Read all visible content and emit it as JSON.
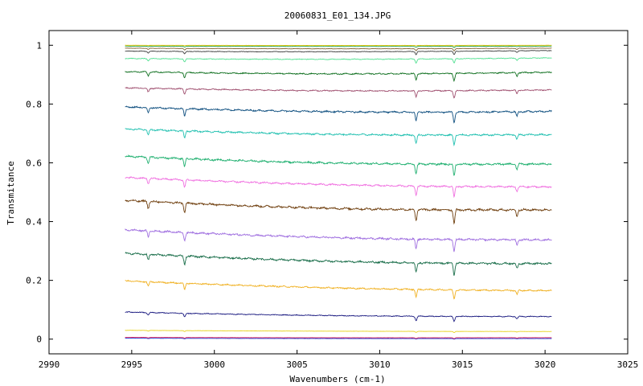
{
  "chart_data": {
    "type": "line",
    "title": "20060831_E01_134.JPG",
    "xlabel": "Wavenumbers (cm-1)",
    "ylabel": "Transmitance",
    "xlim": [
      2990,
      3025
    ],
    "ylim": [
      -0.05,
      1.05
    ],
    "xticks": [
      2990,
      2995,
      3000,
      3005,
      3010,
      3015,
      3020,
      3025
    ],
    "yticks": [
      0,
      0.2,
      0.4,
      0.6,
      0.8,
      1
    ],
    "ytick_labels": [
      "0",
      "0.2",
      "0.4",
      "0.6",
      "0.8",
      "1"
    ],
    "grid": false,
    "legend": "none",
    "x_range": [
      2994.6,
      3020.4
    ],
    "absorption_lines": [
      {
        "x": 2996.0,
        "depth": 0.5
      },
      {
        "x": 2998.2,
        "depth": 0.7
      },
      {
        "x": 3012.2,
        "depth": 0.85
      },
      {
        "x": 3014.5,
        "depth": 1.0
      },
      {
        "x": 3018.3,
        "depth": 0.45
      }
    ],
    "series": [
      {
        "start": 0.003,
        "end": 0.002,
        "depth": 0.002,
        "color": "#1c3dd6"
      },
      {
        "start": 0.006,
        "end": 0.005,
        "depth": 0.003,
        "color": "#e0205a"
      },
      {
        "start": 0.03,
        "end": 0.026,
        "depth": 0.004,
        "color": "#e6d21a"
      },
      {
        "start": 0.092,
        "end": 0.077,
        "depth": 0.018,
        "color": "#1a1a80"
      },
      {
        "start": 0.198,
        "end": 0.165,
        "depth": 0.03,
        "color": "#f0b020"
      },
      {
        "start": 0.292,
        "end": 0.257,
        "depth": 0.04,
        "color": "#1a6e4a"
      },
      {
        "start": 0.372,
        "end": 0.338,
        "depth": 0.04,
        "color": "#a070e0"
      },
      {
        "start": 0.472,
        "end": 0.44,
        "depth": 0.045,
        "color": "#704010"
      },
      {
        "start": 0.55,
        "end": 0.518,
        "depth": 0.035,
        "color": "#f070e0"
      },
      {
        "start": 0.622,
        "end": 0.596,
        "depth": 0.04,
        "color": "#20b070"
      },
      {
        "start": 0.715,
        "end": 0.696,
        "depth": 0.035,
        "color": "#20c0b0"
      },
      {
        "start": 0.79,
        "end": 0.775,
        "depth": 0.035,
        "color": "#105080"
      },
      {
        "start": 0.855,
        "end": 0.848,
        "depth": 0.025,
        "color": "#a05070"
      },
      {
        "start": 0.91,
        "end": 0.908,
        "depth": 0.025,
        "color": "#107020"
      },
      {
        "start": 0.955,
        "end": 0.957,
        "depth": 0.015,
        "color": "#50e090"
      },
      {
        "start": 0.98,
        "end": 0.982,
        "depth": 0.012,
        "color": "#404040"
      },
      {
        "start": 0.99,
        "end": 0.99,
        "depth": 0.008,
        "color": "#806030"
      },
      {
        "start": 0.997,
        "end": 0.997,
        "depth": 0.004,
        "color": "#20a040"
      },
      {
        "start": 1.0,
        "end": 1.0,
        "depth": 0.002,
        "color": "#e0c000"
      }
    ]
  }
}
